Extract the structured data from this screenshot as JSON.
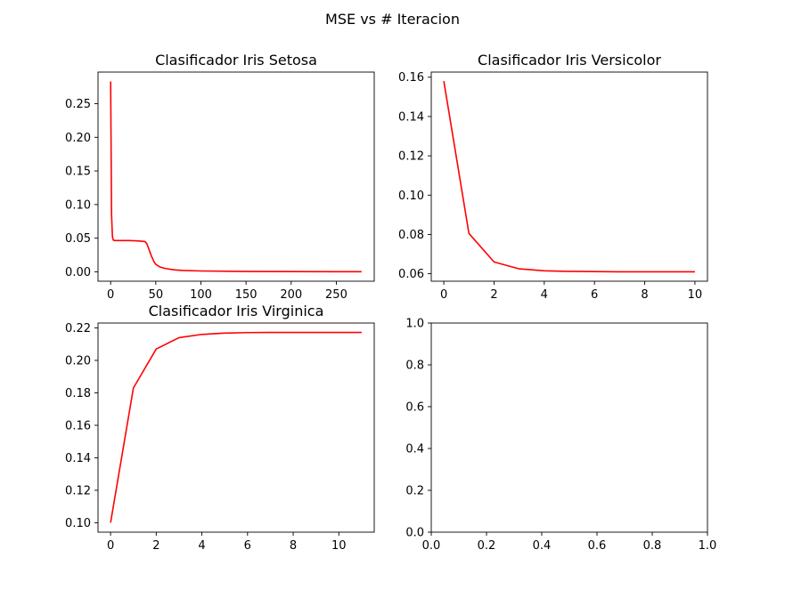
{
  "figure_title": "MSE vs # Iteracion",
  "line_color": "#ff0000",
  "chart_data": [
    {
      "type": "line",
      "title": "Clasificador Iris Setosa",
      "xlabel": "",
      "ylabel": "",
      "xlim": [
        -14,
        292
      ],
      "ylim": [
        -0.014,
        0.297
      ],
      "xticks": [
        0,
        50,
        100,
        150,
        200,
        250
      ],
      "yticks": [
        0.0,
        0.05,
        0.1,
        0.15,
        0.2,
        0.25
      ],
      "ytick_decimals": 2,
      "grid": false,
      "series": [
        {
          "x": [
            0,
            1,
            2,
            3,
            5,
            10,
            20,
            30,
            38,
            40,
            42,
            45,
            48,
            50,
            55,
            60,
            70,
            80,
            100,
            150,
            200,
            250,
            278
          ],
          "values": [
            0.283,
            0.085,
            0.052,
            0.047,
            0.0465,
            0.0465,
            0.0465,
            0.046,
            0.045,
            0.042,
            0.035,
            0.024,
            0.015,
            0.011,
            0.007,
            0.005,
            0.003,
            0.002,
            0.0012,
            0.0005,
            0.0003,
            0.0002,
            0.0002
          ]
        }
      ]
    },
    {
      "type": "line",
      "title": "Clasificador Iris Versicolor",
      "xlabel": "",
      "ylabel": "",
      "xlim": [
        -0.5,
        10.5
      ],
      "ylim": [
        0.0562,
        0.1626
      ],
      "xticks": [
        0,
        2,
        4,
        6,
        8,
        10
      ],
      "yticks": [
        0.06,
        0.08,
        0.1,
        0.12,
        0.14,
        0.16
      ],
      "ytick_decimals": 2,
      "grid": false,
      "series": [
        {
          "x": [
            0,
            1,
            2,
            3,
            4,
            5,
            6,
            7,
            8,
            9,
            10
          ],
          "values": [
            0.158,
            0.0805,
            0.066,
            0.0625,
            0.0615,
            0.0612,
            0.0611,
            0.061,
            0.061,
            0.061,
            0.061
          ]
        }
      ]
    },
    {
      "type": "line",
      "title": "Clasificador Iris Virginica",
      "xlabel": "",
      "ylabel": "",
      "xlim": [
        -0.55,
        11.55
      ],
      "ylim": [
        0.0942,
        0.223
      ],
      "xticks": [
        0,
        2,
        4,
        6,
        8,
        10
      ],
      "yticks": [
        0.1,
        0.12,
        0.14,
        0.16,
        0.18,
        0.2,
        0.22
      ],
      "ytick_decimals": 2,
      "grid": false,
      "series": [
        {
          "x": [
            0,
            1,
            2,
            3,
            4,
            5,
            6,
            7,
            8,
            9,
            10,
            11
          ],
          "values": [
            0.1,
            0.183,
            0.207,
            0.214,
            0.216,
            0.2168,
            0.2171,
            0.2172,
            0.2172,
            0.2172,
            0.2172,
            0.2172
          ]
        }
      ]
    },
    {
      "type": "line",
      "title": "",
      "xlabel": "",
      "ylabel": "",
      "xlim": [
        0,
        1
      ],
      "ylim": [
        0,
        1
      ],
      "xticks": [
        0.0,
        0.2,
        0.4,
        0.6,
        0.8,
        1.0
      ],
      "yticks": [
        0.0,
        0.2,
        0.4,
        0.6,
        0.8,
        1.0
      ],
      "ytick_decimals": 1,
      "xtick_decimals": 1,
      "grid": false,
      "series": []
    }
  ]
}
